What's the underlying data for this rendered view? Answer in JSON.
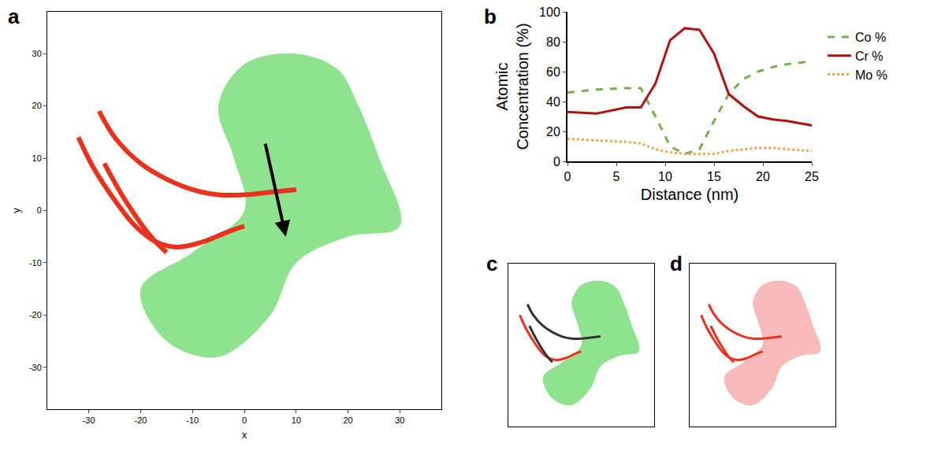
{
  "chart_data": [
    {
      "panel": "a",
      "type": "scatter",
      "xlabel": "x",
      "ylabel": "y",
      "xlim": [
        -38,
        38
      ],
      "ylim": [
        -38,
        38
      ],
      "xticks": [
        -30,
        -20,
        -10,
        0,
        10,
        20,
        30
      ],
      "yticks": [
        -30,
        -20,
        -10,
        0,
        10,
        20,
        30
      ],
      "series": [
        {
          "type": "area",
          "color": "#33cc33",
          "x": [
            0,
            10,
            18,
            22,
            26,
            30,
            20,
            10,
            5,
            -5,
            -15,
            -20,
            -10,
            0,
            -2,
            -5,
            0
          ],
          "y": [
            28,
            30,
            27,
            20,
            10,
            -3,
            -5,
            -10,
            -20,
            -28,
            -25,
            -15,
            -8,
            0,
            10,
            20,
            28
          ]
        },
        {
          "type": "line",
          "color": "#e8321e",
          "x": [
            -28,
            -25,
            -20,
            -15,
            -10,
            -5,
            0,
            5,
            10
          ],
          "y": [
            19,
            14,
            9,
            6,
            4,
            3,
            3,
            3.5,
            4
          ]
        },
        {
          "type": "line",
          "color": "#e8321e",
          "x": [
            -32,
            -29,
            -25,
            -21,
            -17,
            -13,
            -8,
            -3,
            0
          ],
          "y": [
            14,
            8,
            2,
            -3,
            -6,
            -7,
            -6,
            -4,
            -3
          ]
        },
        {
          "type": "line",
          "color": "#e8321e",
          "x": [
            -27,
            -23,
            -18,
            -15
          ],
          "y": [
            9,
            2,
            -5,
            -8
          ]
        }
      ],
      "arrows": [
        {
          "from_x": 4,
          "from_y": 13,
          "x": 8,
          "y": -5
        }
      ]
    },
    {
      "panel": "b",
      "type": "line",
      "xlabel": "Distance (nm)",
      "ylabel": "Atomic Concentration (%)",
      "xlim": [
        0,
        25
      ],
      "ylim": [
        0,
        100
      ],
      "xticks": [
        0,
        5,
        10,
        15,
        20,
        25
      ],
      "yticks": [
        0,
        20,
        40,
        60,
        80,
        100
      ],
      "legend": "right",
      "x": [
        0,
        3,
        6,
        7.5,
        9,
        10.5,
        12,
        13.5,
        15,
        16.5,
        18,
        19.5,
        21,
        22.5,
        25
      ],
      "series": [
        {
          "name": "Co %",
          "color": "#77b04a",
          "line_style": "dash",
          "values": [
            46,
            48,
            49,
            49,
            30,
            10,
            5,
            8,
            27,
            45,
            55,
            60,
            63,
            65,
            67
          ]
        },
        {
          "name": "Cr %",
          "color": "#b01010",
          "line_style": "solid",
          "values": [
            33,
            32,
            36,
            36,
            52,
            81,
            89,
            88,
            72,
            45,
            37,
            30,
            28,
            27,
            24
          ]
        },
        {
          "name": "Mo %",
          "color": "#f3a24a",
          "line_style": "dot",
          "values": [
            15,
            14,
            13,
            12,
            8,
            6,
            5,
            5,
            5,
            7,
            8,
            9,
            9,
            8,
            7
          ]
        }
      ]
    },
    {
      "panel": "c",
      "type": "scatter",
      "tick_labels": false,
      "xlim": [
        -38,
        38
      ],
      "ylim": [
        -38,
        38
      ],
      "series": [
        {
          "type": "area",
          "color": "#33cc33",
          "x": [
            0,
            10,
            18,
            22,
            26,
            30,
            20,
            10,
            5,
            -5,
            -15,
            -20,
            -10,
            0,
            -2,
            -5,
            0
          ],
          "y": [
            28,
            30,
            27,
            20,
            10,
            -3,
            -5,
            -10,
            -20,
            -28,
            -25,
            -15,
            -8,
            0,
            10,
            20,
            28
          ]
        },
        {
          "type": "line",
          "color": "#333333",
          "x": [
            -28,
            -25,
            -20,
            -15,
            -10,
            -5,
            0,
            5,
            10
          ],
          "y": [
            19,
            14,
            9,
            6,
            4,
            3,
            3,
            3.5,
            4
          ]
        },
        {
          "type": "line",
          "color": "#e8321e",
          "x": [
            -32,
            -29,
            -25,
            -21,
            -17,
            -13,
            -8,
            -3,
            0
          ],
          "y": [
            14,
            8,
            2,
            -3,
            -6,
            -7,
            -6,
            -4,
            -3
          ]
        },
        {
          "type": "line",
          "color": "#333333",
          "x": [
            -27,
            -23,
            -18,
            -15
          ],
          "y": [
            9,
            2,
            -5,
            -8
          ]
        }
      ]
    },
    {
      "panel": "d",
      "type": "scatter",
      "tick_labels": false,
      "xlim": [
        -38,
        38
      ],
      "ylim": [
        -38,
        38
      ],
      "series": [
        {
          "type": "area",
          "color": "#f08080",
          "x": [
            0,
            10,
            18,
            22,
            26,
            30,
            20,
            10,
            5,
            -5,
            -15,
            -20,
            -10,
            0,
            -2,
            -5,
            0
          ],
          "y": [
            28,
            30,
            27,
            20,
            10,
            -3,
            -5,
            -10,
            -20,
            -28,
            -25,
            -15,
            -8,
            0,
            10,
            20,
            28
          ]
        },
        {
          "type": "line",
          "color": "#e8321e",
          "x": [
            -28,
            -25,
            -20,
            -15,
            -10,
            -5,
            0,
            5,
            10
          ],
          "y": [
            19,
            14,
            9,
            6,
            4,
            3,
            3,
            3.5,
            4
          ]
        },
        {
          "type": "line",
          "color": "#e8321e",
          "x": [
            -32,
            -29,
            -25,
            -21,
            -17,
            -13,
            -8,
            -3,
            0
          ],
          "y": [
            14,
            8,
            2,
            -3,
            -6,
            -7,
            -6,
            -4,
            -3
          ]
        },
        {
          "type": "line",
          "color": "#e8321e",
          "x": [
            -27,
            -23,
            -18,
            -15
          ],
          "y": [
            9,
            2,
            -5,
            -8
          ]
        }
      ]
    }
  ]
}
